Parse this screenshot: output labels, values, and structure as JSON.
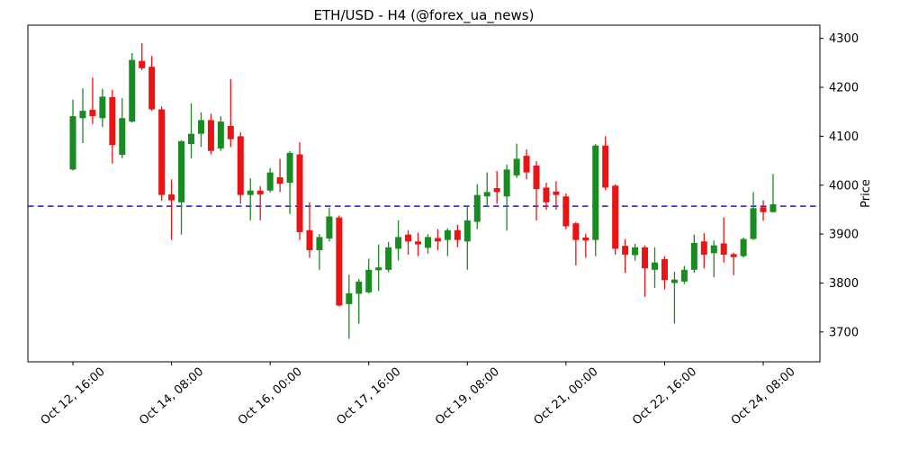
{
  "chart_data": {
    "type": "candlestick",
    "title": "ETH/USD - H4 (@forex_ua_news)",
    "symbol": "ETH/USD",
    "timeframe": "H4",
    "source_handle": "@forex_ua_news",
    "ylabel": "Price",
    "y_ticks": [
      3700,
      3800,
      3900,
      4000,
      4100,
      4200,
      4300
    ],
    "ylim": [
      3639,
      4327
    ],
    "x_tick_labels": [
      "Oct 12, 16:00",
      "Oct 14, 08:00",
      "Oct 16, 00:00",
      "Oct 17, 16:00",
      "Oct 19, 08:00",
      "Oct 21, 00:00",
      "Oct 22, 16:00",
      "Oct 24, 08:00"
    ],
    "x_tick_candle_indices": [
      0,
      10,
      20,
      30,
      40,
      50,
      60,
      70
    ],
    "first_candle_time": "Oct 12, 16:00",
    "interval_hours": 4,
    "hline": {
      "price": 3957,
      "color": "#1515e8",
      "style": "dashed"
    },
    "up_color": "#1a8a22",
    "down_color": "#eb1414",
    "grid": false,
    "legend": "none",
    "candles": [
      [
        4032,
        4175,
        4030,
        4141
      ],
      [
        4137,
        4198,
        4086,
        4152
      ],
      [
        4154,
        4220,
        4125,
        4141
      ],
      [
        4137,
        4197,
        4119,
        4181
      ],
      [
        4180,
        4195,
        4044,
        4082
      ],
      [
        4062,
        4178,
        4055,
        4137
      ],
      [
        4130,
        4270,
        4128,
        4256
      ],
      [
        4254,
        4290,
        4235,
        4239
      ],
      [
        4242,
        4264,
        4152,
        4155
      ],
      [
        4155,
        4161,
        3968,
        3980
      ],
      [
        3981,
        4012,
        3888,
        3969
      ],
      [
        3965,
        4092,
        3899,
        4090
      ],
      [
        4084,
        4167,
        4055,
        4105
      ],
      [
        4105,
        4149,
        4078,
        4133
      ],
      [
        4133,
        4146,
        4063,
        4070
      ],
      [
        4075,
        4141,
        4070,
        4130
      ],
      [
        4121,
        4217,
        4078,
        4094
      ],
      [
        4100,
        4108,
        3962,
        3980
      ],
      [
        3980,
        4014,
        3928,
        3989
      ],
      [
        3989,
        3998,
        3928,
        3981
      ],
      [
        3989,
        4035,
        3985,
        4026
      ],
      [
        4016,
        4054,
        3986,
        4003
      ],
      [
        4005,
        4070,
        3941,
        4066
      ],
      [
        4063,
        4088,
        3888,
        3904
      ],
      [
        3908,
        3965,
        3852,
        3867
      ],
      [
        3867,
        3900,
        3827,
        3894
      ],
      [
        3891,
        3954,
        3885,
        3936
      ],
      [
        3934,
        3938,
        3752,
        3754
      ],
      [
        3757,
        3817,
        3686,
        3779
      ],
      [
        3778,
        3808,
        3717,
        3803
      ],
      [
        3781,
        3850,
        3779,
        3827
      ],
      [
        3826,
        3879,
        3784,
        3832
      ],
      [
        3827,
        3884,
        3822,
        3873
      ],
      [
        3870,
        3928,
        3846,
        3894
      ],
      [
        3899,
        3908,
        3858,
        3885
      ],
      [
        3885,
        3903,
        3855,
        3879
      ],
      [
        3872,
        3900,
        3860,
        3894
      ],
      [
        3892,
        3910,
        3867,
        3885
      ],
      [
        3888,
        3912,
        3855,
        3908
      ],
      [
        3908,
        3919,
        3873,
        3888
      ],
      [
        3885,
        3955,
        3827,
        3928
      ],
      [
        3925,
        4002,
        3910,
        3980
      ],
      [
        3977,
        4026,
        3956,
        3986
      ],
      [
        3994,
        4029,
        3962,
        3986
      ],
      [
        3977,
        4042,
        3907,
        4032
      ],
      [
        4020,
        4085,
        4015,
        4054
      ],
      [
        4060,
        4073,
        4012,
        4026
      ],
      [
        4040,
        4049,
        3928,
        3992
      ],
      [
        3995,
        4005,
        3950,
        3965
      ],
      [
        3987,
        4008,
        3950,
        3980
      ],
      [
        3977,
        3983,
        3910,
        3916
      ],
      [
        3922,
        3925,
        3836,
        3888
      ],
      [
        3893,
        3901,
        3852,
        3887
      ],
      [
        3888,
        4084,
        3855,
        4081
      ],
      [
        4081,
        4100,
        3990,
        3995
      ],
      [
        3999,
        4002,
        3858,
        3870
      ],
      [
        3876,
        3890,
        3821,
        3858
      ],
      [
        3857,
        3880,
        3846,
        3873
      ],
      [
        3873,
        3877,
        3772,
        3830
      ],
      [
        3827,
        3873,
        3790,
        3842
      ],
      [
        3849,
        3855,
        3787,
        3806
      ],
      [
        3800,
        3823,
        3717,
        3807
      ],
      [
        3803,
        3835,
        3798,
        3827
      ],
      [
        3827,
        3899,
        3821,
        3882
      ],
      [
        3885,
        3902,
        3830,
        3858
      ],
      [
        3861,
        3887,
        3812,
        3877
      ],
      [
        3881,
        3934,
        3842,
        3858
      ],
      [
        3859,
        3862,
        3816,
        3853
      ],
      [
        3855,
        3893,
        3852,
        3890
      ],
      [
        3890,
        3986,
        3888,
        3953
      ],
      [
        3955,
        3969,
        3927,
        3945
      ],
      [
        3945,
        4023,
        3944,
        3961
      ]
    ]
  }
}
